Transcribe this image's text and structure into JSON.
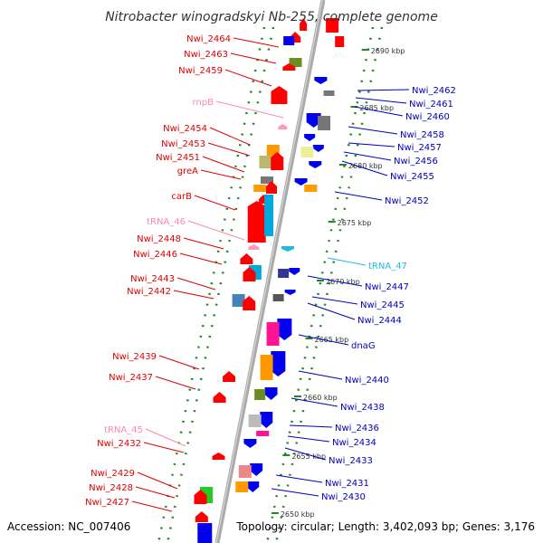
{
  "title": "Nitrobacter winogradskyi Nb-255, complete genome",
  "footer": {
    "accession": "Accession: NC_007406",
    "topology": "Topology: circular; Length: 3,402,093 bp; Genes: 3,176"
  },
  "colors": {
    "left_label": "#dd0000",
    "right_label": "#0000bb",
    "rna_left": "#ff88aa",
    "rna_right": "#22bbdd",
    "axis": "#aaaaaa",
    "dots": "#228822"
  },
  "ticks": [
    "2690 kbp",
    "2685 kbp",
    "2680 kbp",
    "2675 kbp",
    "2670 kbp",
    "2665 kbp",
    "2660 kbp",
    "2655 kbp",
    "2650 kbp"
  ],
  "left_labels": [
    {
      "text": "Nwi_2464",
      "kind": "gene"
    },
    {
      "text": "Nwi_2463",
      "kind": "gene"
    },
    {
      "text": "Nwi_2459",
      "kind": "gene"
    },
    {
      "text": "rnpB",
      "kind": "rna"
    },
    {
      "text": "Nwi_2454",
      "kind": "gene"
    },
    {
      "text": "Nwi_2453",
      "kind": "gene"
    },
    {
      "text": "Nwi_2451",
      "kind": "gene"
    },
    {
      "text": "greA",
      "kind": "gene"
    },
    {
      "text": "carB",
      "kind": "gene"
    },
    {
      "text": "tRNA_46",
      "kind": "rna"
    },
    {
      "text": "Nwi_2448",
      "kind": "gene"
    },
    {
      "text": "Nwi_2446",
      "kind": "gene"
    },
    {
      "text": "Nwi_2443",
      "kind": "gene"
    },
    {
      "text": "Nwi_2442",
      "kind": "gene"
    },
    {
      "text": "Nwi_2439",
      "kind": "gene"
    },
    {
      "text": "Nwi_2437",
      "kind": "gene"
    },
    {
      "text": "tRNA_45",
      "kind": "rna"
    },
    {
      "text": "Nwi_2432",
      "kind": "gene"
    },
    {
      "text": "Nwi_2429",
      "kind": "gene"
    },
    {
      "text": "Nwi_2428",
      "kind": "gene"
    },
    {
      "text": "Nwi_2427",
      "kind": "gene"
    }
  ],
  "right_labels": [
    {
      "text": "Nwi_2462",
      "kind": "gene"
    },
    {
      "text": "Nwi_2461",
      "kind": "gene"
    },
    {
      "text": "Nwi_2460",
      "kind": "gene"
    },
    {
      "text": "Nwi_2458",
      "kind": "gene"
    },
    {
      "text": "Nwi_2457",
      "kind": "gene"
    },
    {
      "text": "Nwi_2456",
      "kind": "gene"
    },
    {
      "text": "Nwi_2455",
      "kind": "gene"
    },
    {
      "text": "Nwi_2452",
      "kind": "gene"
    },
    {
      "text": "tRNA_47",
      "kind": "rna"
    },
    {
      "text": "Nwi_2447",
      "kind": "gene"
    },
    {
      "text": "Nwi_2445",
      "kind": "gene"
    },
    {
      "text": "Nwi_2444",
      "kind": "gene"
    },
    {
      "text": "dnaG",
      "kind": "gene"
    },
    {
      "text": "Nwi_2440",
      "kind": "gene"
    },
    {
      "text": "Nwi_2438",
      "kind": "gene"
    },
    {
      "text": "Nwi_2436",
      "kind": "gene"
    },
    {
      "text": "Nwi_2434",
      "kind": "gene"
    },
    {
      "text": "Nwi_2433",
      "kind": "gene"
    },
    {
      "text": "Nwi_2431",
      "kind": "gene"
    },
    {
      "text": "Nwi_2430",
      "kind": "gene"
    }
  ]
}
